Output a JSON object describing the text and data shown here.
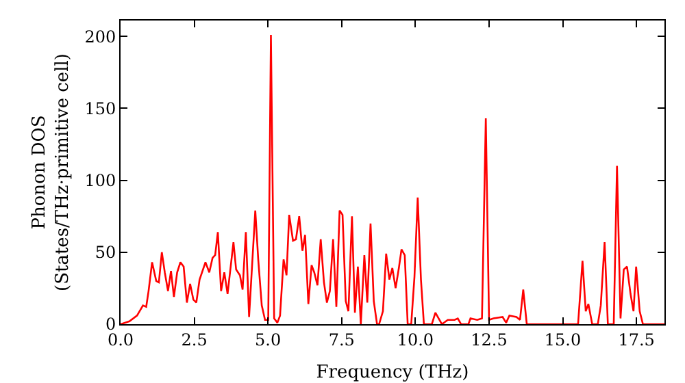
{
  "chart_data": {
    "type": "line",
    "xlabel": "Frequency (THz)",
    "ylabel": "Phonon DOS\n(States/THz·primitive cell)",
    "xlim": [
      0,
      18.45
    ],
    "ylim": [
      0,
      211
    ],
    "xticks": [
      {
        "value": 0,
        "label": "0.0"
      },
      {
        "value": 2.5,
        "label": "2.5"
      },
      {
        "value": 5,
        "label": "5.0"
      },
      {
        "value": 7.5,
        "label": "7.5"
      },
      {
        "value": 10,
        "label": "10.0"
      },
      {
        "value": 12.5,
        "label": "12.5"
      },
      {
        "value": 15,
        "label": "15.0"
      },
      {
        "value": 17.5,
        "label": "17.5"
      }
    ],
    "yticks": [
      0,
      50,
      100,
      150,
      200
    ],
    "grid": false,
    "marker": "none",
    "line_style": "solid",
    "series": [
      {
        "color": "#ff0000",
        "x": [
          0,
          0.3,
          0.56,
          0.76,
          0.87,
          0.95,
          1.07,
          1.21,
          1.3,
          1.4,
          1.5,
          1.61,
          1.71,
          1.81,
          1.92,
          2.03,
          2.14,
          2.25,
          2.36,
          2.47,
          2.57,
          2.68,
          2.88,
          3.01,
          3.12,
          3.21,
          3.3,
          3.41,
          3.52,
          3.63,
          3.83,
          3.92,
          4.05,
          4.14,
          4.25,
          4.36,
          4.57,
          4.67,
          4.79,
          4.9,
          5.01,
          5.1,
          5.21,
          5.32,
          5.41,
          5.53,
          5.63,
          5.72,
          5.85,
          5.95,
          6.06,
          6.17,
          6.26,
          6.37,
          6.48,
          6.57,
          6.68,
          6.79,
          6.9,
          7.0,
          7.1,
          7.21,
          7.32,
          7.43,
          7.53,
          7.64,
          7.73,
          7.85,
          7.95,
          8.05,
          8.15,
          8.27,
          8.37,
          8.48,
          8.59,
          8.7,
          8.77,
          8.9,
          9.01,
          9.12,
          9.22,
          9.33,
          9.44,
          9.53,
          9.64,
          9.74,
          9.86,
          9.97,
          10.08,
          10.19,
          10.29,
          10.56,
          10.68,
          10.79,
          10.9,
          11.1,
          11.33,
          11.44,
          11.55,
          11.8,
          11.87,
          12.1,
          12.26,
          12.39,
          12.5,
          12.65,
          12.96,
          13.08,
          13.19,
          13.43,
          13.55,
          13.66,
          13.78,
          15.52,
          15.67,
          15.78,
          15.87,
          16.0,
          16.19,
          16.29,
          16.42,
          16.53,
          16.73,
          16.84,
          16.96,
          17.07,
          17.18,
          17.3,
          17.4,
          17.49,
          17.61,
          17.72,
          18.45
        ],
        "values": [
          0,
          2,
          6,
          13,
          12,
          23,
          43,
          30,
          29,
          50,
          36,
          23,
          37,
          19,
          36,
          43,
          40,
          15,
          28,
          17,
          15,
          31,
          43,
          36,
          46,
          48,
          64,
          23,
          36,
          21,
          57,
          38,
          34,
          24,
          64,
          5,
          79,
          45,
          13,
          3,
          3,
          201,
          4,
          1,
          6,
          45,
          34,
          76,
          58,
          59,
          75,
          51,
          62,
          14,
          41,
          36,
          27,
          59,
          29,
          15,
          23,
          59,
          12,
          79,
          76,
          16,
          9,
          75,
          8,
          40,
          0,
          48,
          15,
          70,
          16,
          0,
          0,
          9,
          49,
          31,
          39,
          25,
          39,
          52,
          48,
          0,
          0,
          33,
          88,
          31,
          0,
          0,
          8,
          4,
          0,
          3,
          3,
          4,
          0,
          0,
          4,
          3,
          4,
          143,
          3,
          4,
          5,
          1,
          6,
          5,
          3,
          24,
          0,
          0,
          44,
          9,
          14,
          0,
          0,
          13,
          57,
          0,
          0,
          110,
          4,
          38,
          40,
          21,
          9,
          40,
          9,
          0,
          0
        ]
      }
    ]
  }
}
